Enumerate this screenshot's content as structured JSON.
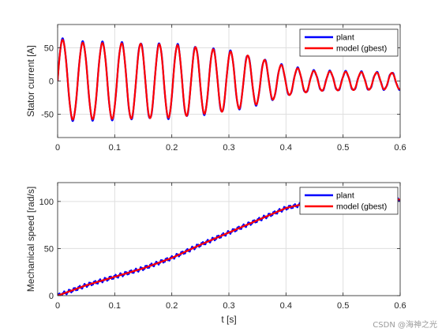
{
  "watermark": "CSDN @海神之光",
  "chart_data": [
    {
      "type": "line",
      "title": "",
      "xlabel": "",
      "ylabel": "Stator current [A]",
      "xlim": [
        0,
        0.6
      ],
      "ylim": [
        -85,
        85
      ],
      "xticks": [
        0,
        0.1,
        0.2,
        0.3,
        0.4,
        0.5,
        0.6
      ],
      "xtick_labels": [
        "0",
        "0.1",
        "0.2",
        "0.3",
        "0.4",
        "0.5",
        "0.6"
      ],
      "yticks": [
        -50,
        0,
        50
      ],
      "ytick_labels": [
        "-50",
        "0",
        "50"
      ],
      "grid": true,
      "legend": "top-right",
      "series": [
        {
          "name": "plant",
          "color": "#0000ff"
        },
        {
          "name": "model (gbest)",
          "color": "#ff0000"
        }
      ],
      "signal": {
        "kind": "decaying-sinusoid",
        "frequency_hz_start": 28,
        "frequency_hz_end": 38,
        "x": [
          0,
          0.02,
          0.1,
          0.2,
          0.3,
          0.35,
          0.4,
          0.45,
          0.6
        ],
        "amplitude": [
          65,
          58,
          57,
          55,
          45,
          35,
          22,
          15,
          12
        ]
      }
    },
    {
      "type": "line",
      "title": "",
      "xlabel": "t [s]",
      "ylabel": "Mechanical speed [rad/s]",
      "xlim": [
        0,
        0.6
      ],
      "ylim": [
        0,
        120
      ],
      "xticks": [
        0,
        0.1,
        0.2,
        0.3,
        0.4,
        0.5,
        0.6
      ],
      "xtick_labels": [
        "0",
        "0.1",
        "0.2",
        "0.3",
        "0.4",
        "0.5",
        "0.6"
      ],
      "yticks": [
        0,
        50,
        100
      ],
      "ytick_labels": [
        "0",
        "50",
        "100"
      ],
      "grid": true,
      "legend": "top-right",
      "series": [
        {
          "name": "plant",
          "color": "#0000ff"
        },
        {
          "name": "model (gbest)",
          "color": "#ff0000"
        }
      ],
      "signal": {
        "kind": "piecewise-linear",
        "x": [
          0,
          0.05,
          0.1,
          0.15,
          0.2,
          0.25,
          0.3,
          0.35,
          0.4,
          0.45,
          0.5,
          0.55,
          0.6
        ],
        "y": [
          0,
          11,
          20,
          29,
          40,
          54,
          67,
          80,
          93,
          100,
          101,
          102,
          102
        ]
      }
    }
  ]
}
